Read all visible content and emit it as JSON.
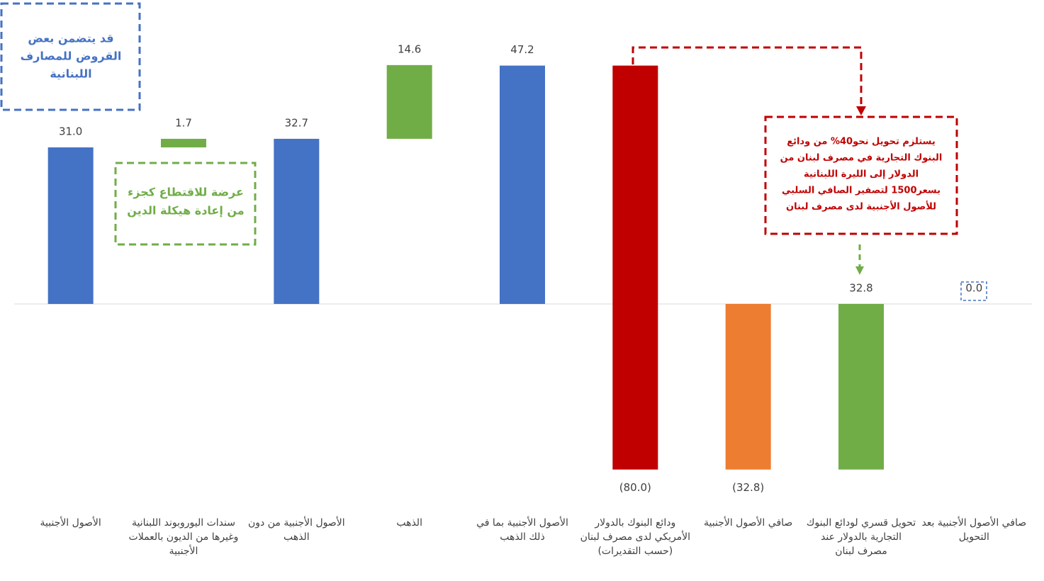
{
  "chart_data": {
    "type": "waterfall",
    "categories": [
      "الأصول الأجنبية",
      "سندات اليوروبوند اللبنانية وغيرها من الديون بالعملات الأجنبية",
      "الأصول الأجنبية من دون الذهب",
      "الذهب",
      "الأصول الأجنبية بما في ذلك الذهب",
      "ودائع البنوك بالدولار الأمريكي لدى مصرف لبنان (حسب التقديرات)",
      "صافي الأصول الأجنبية",
      "تحويل قسري لودائع البنوك التجارية بالدولار عند مصرف لبنان",
      "صافي الأصول الأجنبية بعد التحويل"
    ],
    "values": [
      31.0,
      1.7,
      32.7,
      14.6,
      47.2,
      -80.0,
      -32.8,
      32.8,
      0.0
    ],
    "value_labels": [
      "31.0",
      "1.7",
      "32.7",
      "14.6",
      "47.2",
      "(80.0)",
      "(32.8)",
      "32.8",
      "0.0"
    ],
    "measures": [
      "total",
      "relative",
      "total",
      "relative",
      "total",
      "relative",
      "total",
      "relative",
      "total"
    ],
    "colors": [
      "#4472c4",
      "#70ad47",
      "#4472c4",
      "#70ad47",
      "#4472c4",
      "#c00000",
      "#ed7d31",
      "#70ad47",
      "#4472c4"
    ],
    "ylim": [
      -40,
      55
    ],
    "annotations": [
      {
        "lines": [
          "قد يتضمن بعض",
          "القروض للمصارف",
          "اللبنانية"
        ],
        "color": "#4472c4"
      },
      {
        "lines": [
          "عرضة للاقتطاع كجزء",
          "من إعادة هيكلة الدين"
        ],
        "color": "#70ad47"
      },
      {
        "lines": [
          "يستلزم تحويل نحو40%  من ودائع",
          "البنوك التجارية في مصرف لبنان من",
          "الدولار إلى الليرة اللبنانية",
          "بسعر1500 لتصفير الصافي السلبي",
          "للأصول الأجنبية لدى مصرف لبنان"
        ],
        "color": "#c00000"
      }
    ]
  }
}
